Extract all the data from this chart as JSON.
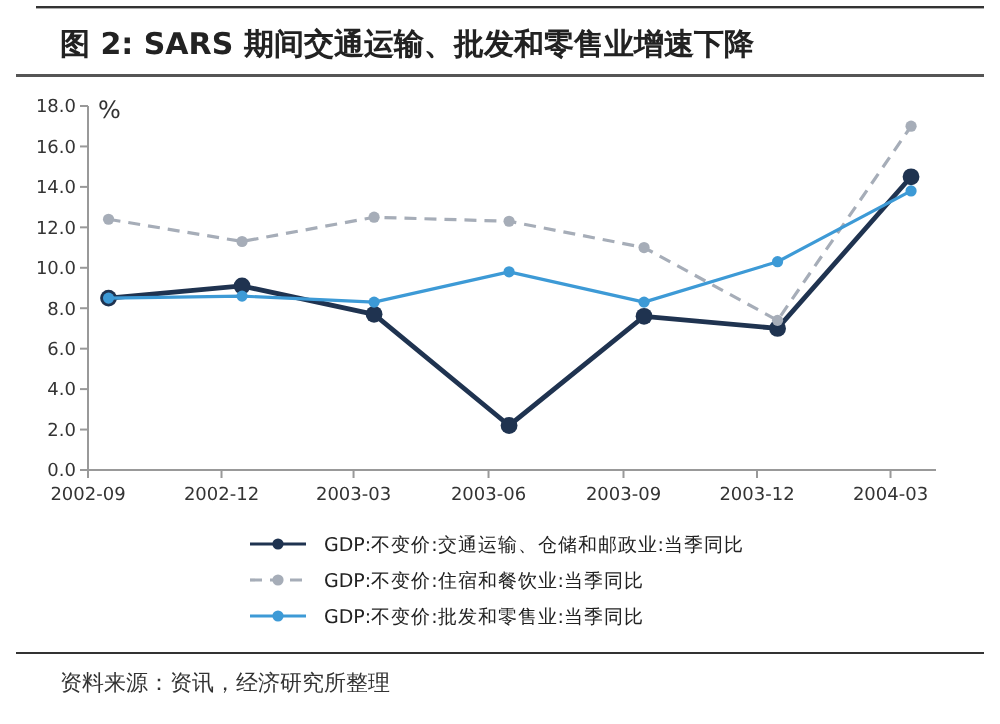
{
  "chart_data": {
    "type": "line",
    "title": "图 2: SARS 期间交通运输、批发和零售业增速下降",
    "ylabel": "%",
    "annotations": [
      "资料来源：资讯，经济研究所整理"
    ],
    "x": [
      "2002-09-15",
      "2002-12-15",
      "2003-03-15",
      "2003-06-15",
      "2003-09-15",
      "2003-12-15",
      "2004-03-15"
    ],
    "xlim": [
      "2002-09",
      "2004-04"
    ],
    "xticks": [
      {
        "value": "2002-09",
        "label": "2002-09"
      },
      {
        "value": "2002-12",
        "label": "2002-12"
      },
      {
        "value": "2003-03",
        "label": "2003-03"
      },
      {
        "value": "2003-06",
        "label": "2003-06"
      },
      {
        "value": "2003-09",
        "label": "2003-09"
      },
      {
        "value": "2003-12",
        "label": "2003-12"
      },
      {
        "value": "2004-03",
        "label": "2004-03"
      }
    ],
    "ylim": [
      0,
      18
    ],
    "yticks": [
      {
        "value": 0,
        "label": "0.0"
      },
      {
        "value": 2,
        "label": "2.0"
      },
      {
        "value": 4,
        "label": "4.0"
      },
      {
        "value": 6,
        "label": "6.0"
      },
      {
        "value": 8,
        "label": "8.0"
      },
      {
        "value": 10,
        "label": "10.0"
      },
      {
        "value": 12,
        "label": "12.0"
      },
      {
        "value": 14,
        "label": "14.0"
      },
      {
        "value": 16,
        "label": "16.0"
      },
      {
        "value": 18,
        "label": "18.0"
      }
    ],
    "series": [
      {
        "name": "GDP:不变价:交通运输、仓储和邮政业:当季同比",
        "color": "#1f3350",
        "line_style": "solid",
        "values": [
          8.5,
          9.1,
          7.7,
          2.2,
          7.6,
          7.0,
          14.5
        ]
      },
      {
        "name": "GDP:不变价:住宿和餐饮业:当季同比",
        "color": "#a6adb8",
        "line_style": "dashed",
        "values": [
          12.4,
          11.3,
          12.5,
          12.3,
          11.0,
          7.4,
          17.0
        ]
      },
      {
        "name": "GDP:不变价:批发和零售业:当季同比",
        "color": "#3d9ad6",
        "line_style": "solid",
        "values": [
          8.5,
          8.6,
          8.3,
          9.8,
          8.3,
          10.3,
          13.8
        ]
      }
    ],
    "marker": "circle",
    "legend": "bottom",
    "grid": false
  }
}
